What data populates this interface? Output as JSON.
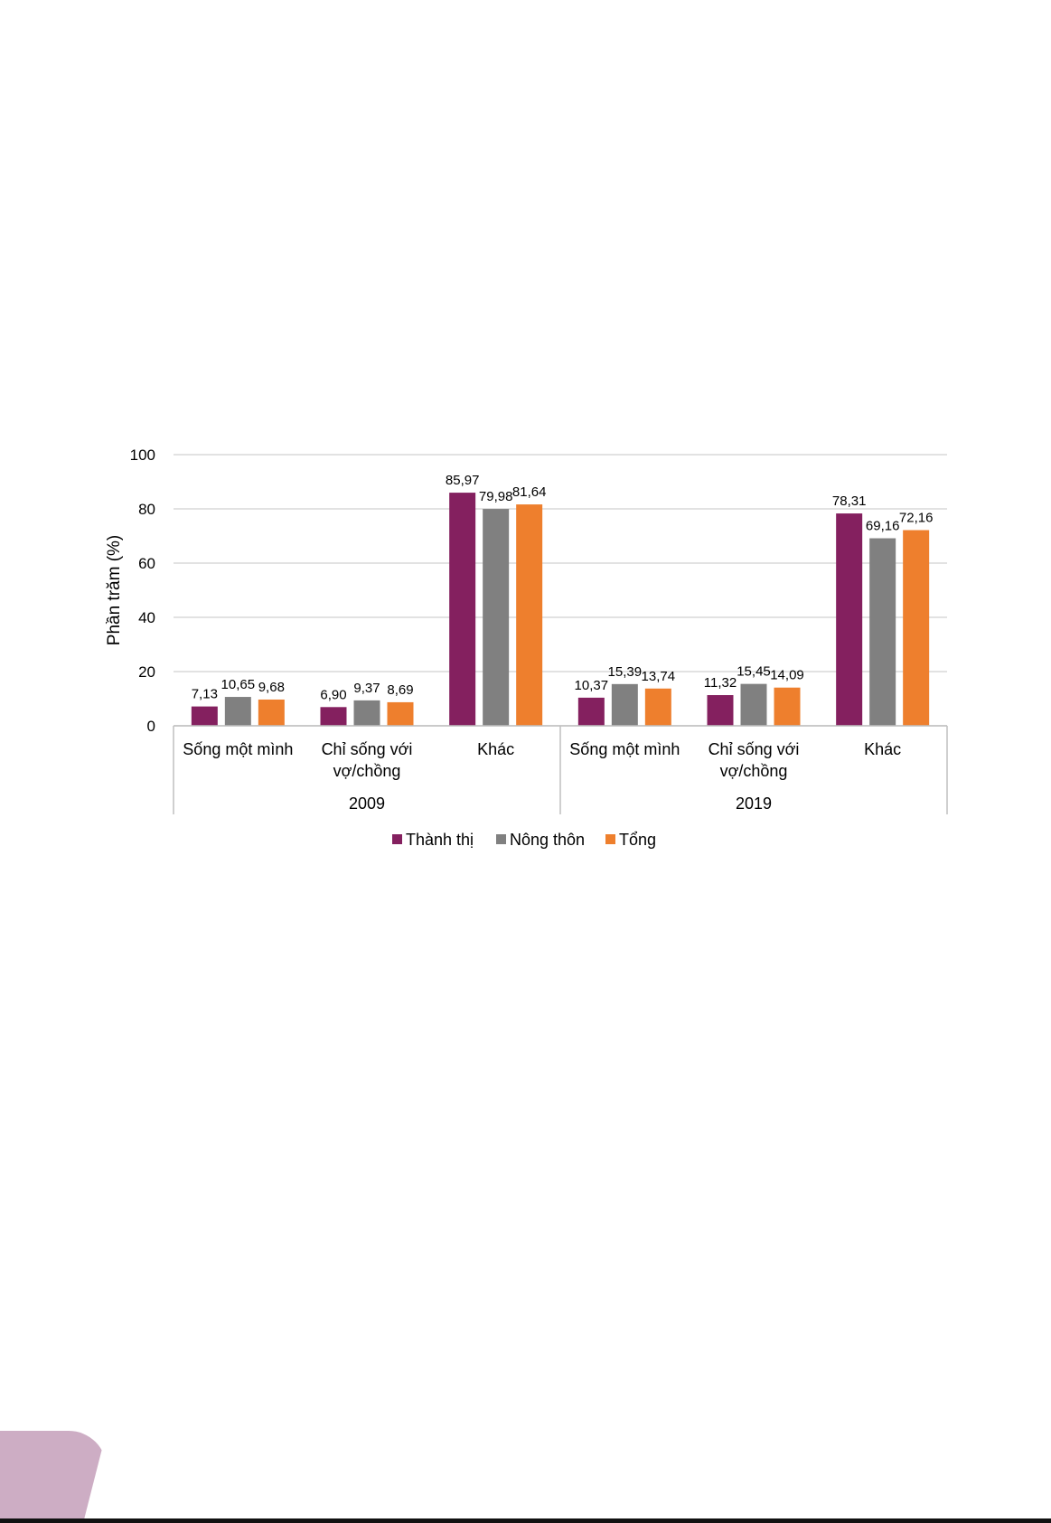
{
  "chart_data": {
    "type": "bar",
    "title": "",
    "xlabel": "",
    "ylabel": "Phần trăm (%)",
    "ylim": [
      0,
      100
    ],
    "yticks": [
      0,
      20,
      40,
      60,
      80,
      100
    ],
    "grid": true,
    "legend_position": "bottom",
    "groups": [
      {
        "label": "2009",
        "categories": [
          "Sống một mình",
          "Chỉ sống với vợ/chồng",
          "Khác"
        ]
      },
      {
        "label": "2019",
        "categories": [
          "Sống một mình",
          "Chỉ sống với vợ/chồng",
          "Khác"
        ]
      }
    ],
    "category_lines": [
      [
        "Sống một mình"
      ],
      [
        "Chỉ sống với",
        "vợ/chồng"
      ],
      [
        "Khác"
      ]
    ],
    "series": [
      {
        "name": "Thành thị",
        "color": "#84205f",
        "values": [
          7.13,
          6.9,
          85.97,
          10.37,
          11.32,
          78.31
        ],
        "labels": [
          "7,13",
          "6,90",
          "85,97",
          "10,37",
          "11,32",
          "78,31"
        ]
      },
      {
        "name": "Nông thôn",
        "color": "#808080",
        "values": [
          10.65,
          9.37,
          79.98,
          15.39,
          15.45,
          69.16
        ],
        "labels": [
          "10,65",
          "9,37",
          "79,98",
          "15,39",
          "15,45",
          "69,16"
        ]
      },
      {
        "name": "Tổng",
        "color": "#ee7f2d",
        "values": [
          9.68,
          8.69,
          81.64,
          13.74,
          14.09,
          72.16
        ],
        "labels": [
          "9,68",
          "8,69",
          "81,64",
          "13,74",
          "14,09",
          "72,16"
        ]
      }
    ]
  },
  "decor": {
    "corner_color": "#cdadc4"
  }
}
